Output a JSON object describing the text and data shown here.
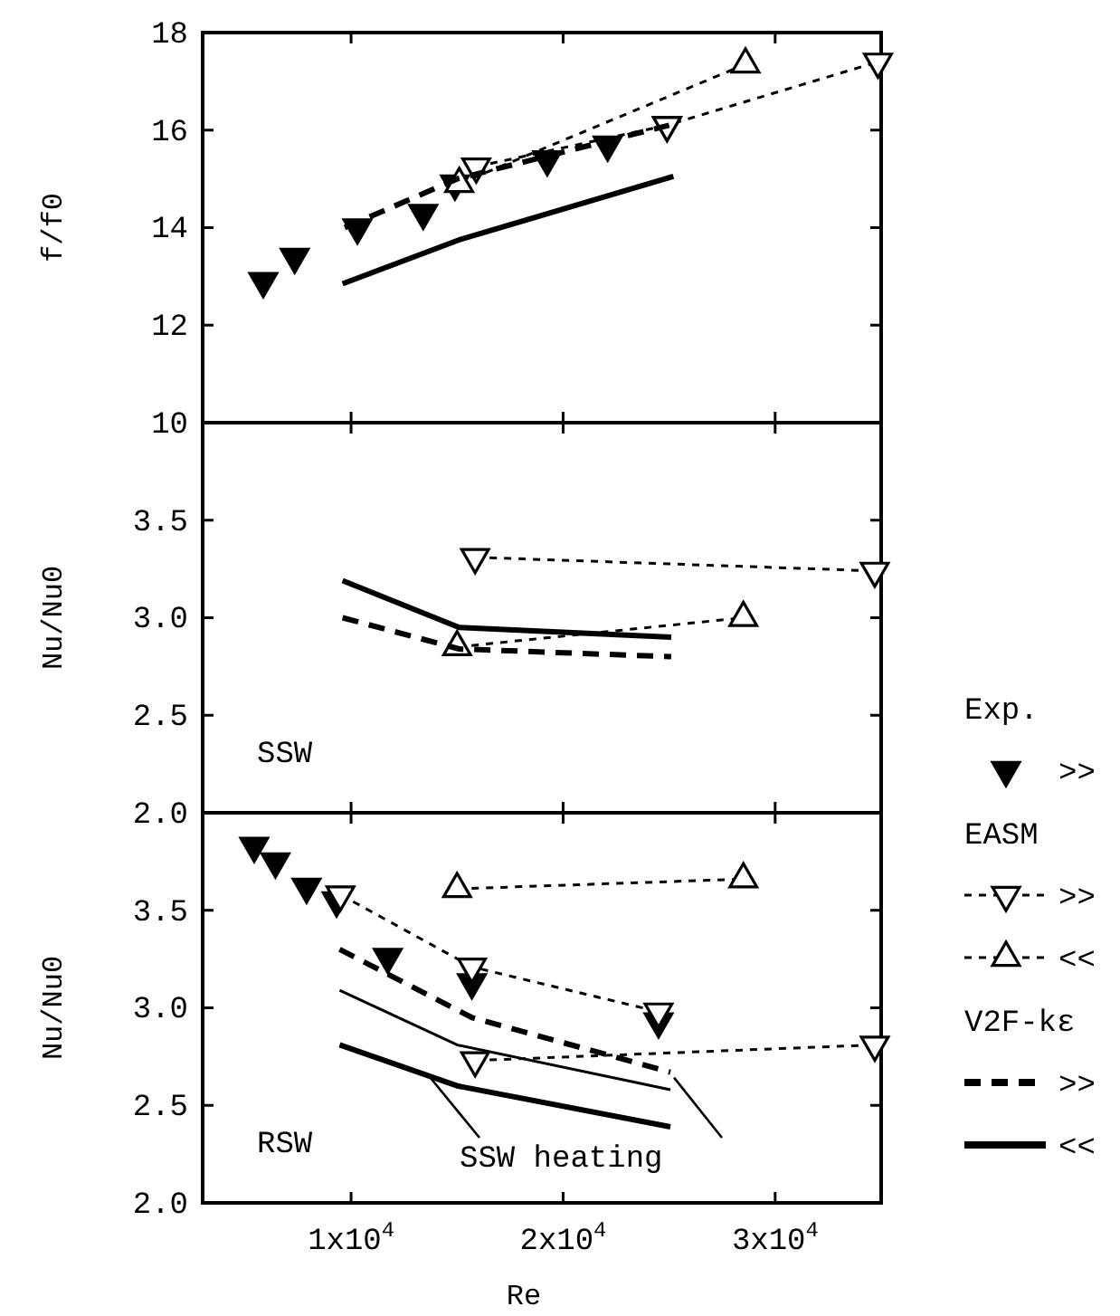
{
  "chart_data": [
    {
      "type": "line",
      "ylabel": "f/f0",
      "xlim": [
        3000,
        35000
      ],
      "ylim": [
        10,
        18
      ],
      "xticks": [
        {
          "value": 10000,
          "label": null
        },
        {
          "value": 20000,
          "label": null
        },
        {
          "value": 30000,
          "label": null
        }
      ],
      "yticks": [
        10,
        12,
        14,
        16,
        18
      ],
      "tick_labels": "y",
      "grid": false,
      "series": [
        {
          "type": "scatter",
          "color": "#000000",
          "marker": "triangle-down",
          "x": [
            5860,
            7340,
            10300,
            13400,
            14900,
            19250,
            22100,
            24900
          ],
          "values": [
            12.9,
            13.4,
            14.0,
            14.3,
            14.9,
            15.4,
            15.7,
            16.1
          ]
        },
        {
          "type": "line",
          "color": "#000000",
          "line_style": "dotted",
          "marker": "triangle-down",
          "x": [
            15900,
            24900,
            34850
          ],
          "values": [
            15.25,
            16.1,
            17.4
          ]
        },
        {
          "type": "line",
          "color": "#000000",
          "line_style": "dotted",
          "marker": "triangle",
          "x": [
            15100,
            28600
          ],
          "values": [
            14.9,
            17.35
          ]
        },
        {
          "type": "line",
          "color": "#000000",
          "line_style": "dashed",
          "marker": "none",
          "x": [
            9700,
            15000,
            25000
          ],
          "values": [
            14.0,
            15.0,
            16.1
          ]
        },
        {
          "type": "line",
          "color": "#000000",
          "line_style": "solid",
          "marker": "none",
          "x": [
            9600,
            15100,
            25200
          ],
          "values": [
            12.85,
            13.75,
            15.05
          ]
        }
      ]
    },
    {
      "type": "line",
      "ylabel": "Nu/Nu0",
      "xlim": [
        3000,
        35000
      ],
      "ylim": [
        2,
        4
      ],
      "xticks": [
        {
          "value": 10000,
          "label": null
        },
        {
          "value": 20000,
          "label": null
        },
        {
          "value": 30000,
          "label": null
        }
      ],
      "yticks": [
        {
          "value": 2,
          "label": "2.0"
        },
        {
          "value": 2.5,
          "label": "2.5"
        },
        {
          "value": 3,
          "label": "3.0"
        },
        {
          "value": 3.5,
          "label": "3.5"
        }
      ],
      "tick_labels": "y",
      "grid": false,
      "annotations": [
        "SSW"
      ],
      "series": [
        {
          "type": "line",
          "color": "#000000",
          "line_style": "dotted",
          "marker": "triangle-down",
          "x": [
            15850,
            34700
          ],
          "values": [
            3.31,
            3.24
          ]
        },
        {
          "type": "line",
          "color": "#000000",
          "line_style": "dotted",
          "marker": "triangle",
          "x": [
            15000,
            28500
          ],
          "values": [
            2.85,
            3.0
          ]
        },
        {
          "type": "line",
          "color": "#000000",
          "line_style": "dashed",
          "marker": "none",
          "x": [
            9600,
            15100,
            25100
          ],
          "values": [
            3.0,
            2.84,
            2.8
          ]
        },
        {
          "type": "line",
          "color": "#000000",
          "line_style": "solid",
          "marker": "none",
          "x": [
            9600,
            15100,
            25100
          ],
          "values": [
            3.19,
            2.95,
            2.9
          ]
        }
      ]
    },
    {
      "type": "line",
      "ylabel": "Nu/Nu0",
      "xlabel": "Re",
      "xlim": [
        3000,
        35000
      ],
      "ylim": [
        2,
        4
      ],
      "xticks": [
        {
          "value": 10000,
          "label": "1x10$^{4}$"
        },
        {
          "value": 20000,
          "label": "2x10$^{4}$"
        },
        {
          "value": 30000,
          "label": "3x10$^{4}$"
        }
      ],
      "yticks": [
        {
          "value": 2,
          "label": "2.0"
        },
        {
          "value": 2.5,
          "label": "2.5"
        },
        {
          "value": 3,
          "label": "3.0"
        },
        {
          "value": 3.5,
          "label": "3.5"
        }
      ],
      "grid": false,
      "legend": "right",
      "annotations": [
        "Exp.",
        "EASM",
        "V2F-kε",
        "RSW",
        {
          "text": "SSW heating",
          "x": 13600,
          "y": 2.66
        }
      ],
      "series": [
        {
          "name": ">>",
          "type": "scatter",
          "color": "#000000",
          "marker": "triangle-down",
          "x": [
            5430,
            6430,
            7900,
            9320,
            11730,
            15700,
            24500
          ],
          "values": [
            3.83,
            3.75,
            3.62,
            3.55,
            3.26,
            3.13,
            2.93
          ]
        },
        {
          "name": ">>",
          "type": "line",
          "color": "#000000",
          "line_style": "dotted",
          "marker": "triangle-down",
          "x": [
            15850,
            34700
          ],
          "values": [
            2.73,
            2.81
          ]
        },
        {
          "name": "<<",
          "type": "line",
          "color": "#000000",
          "line_style": "dotted",
          "marker": "triangle",
          "x": [
            15000,
            28500
          ],
          "values": [
            3.61,
            3.66
          ]
        },
        {
          "type": "line",
          "color": "#000000",
          "line_style": "dotted",
          "marker": "triangle-down",
          "x": [
            9500,
            15700,
            24500
          ],
          "values": [
            3.58,
            3.21,
            2.98
          ]
        },
        {
          "name": ">>",
          "type": "line",
          "color": "#000000",
          "line_style": "dashed",
          "marker": "none",
          "x": [
            9460,
            15700,
            25060
          ],
          "values": [
            3.3,
            2.95,
            2.67
          ]
        },
        {
          "type": "line",
          "color": "#000000",
          "line_style": "solid",
          "marker": "none",
          "x": [
            9460,
            15000,
            25060
          ],
          "values": [
            3.09,
            2.81,
            2.58
          ]
        },
        {
          "name": "<<",
          "type": "line",
          "color": "#000000",
          "line_style": "solid",
          "marker": "none",
          "x": [
            9460,
            15000,
            25060
          ],
          "values": [
            2.81,
            2.6,
            2.39
          ]
        }
      ]
    }
  ]
}
